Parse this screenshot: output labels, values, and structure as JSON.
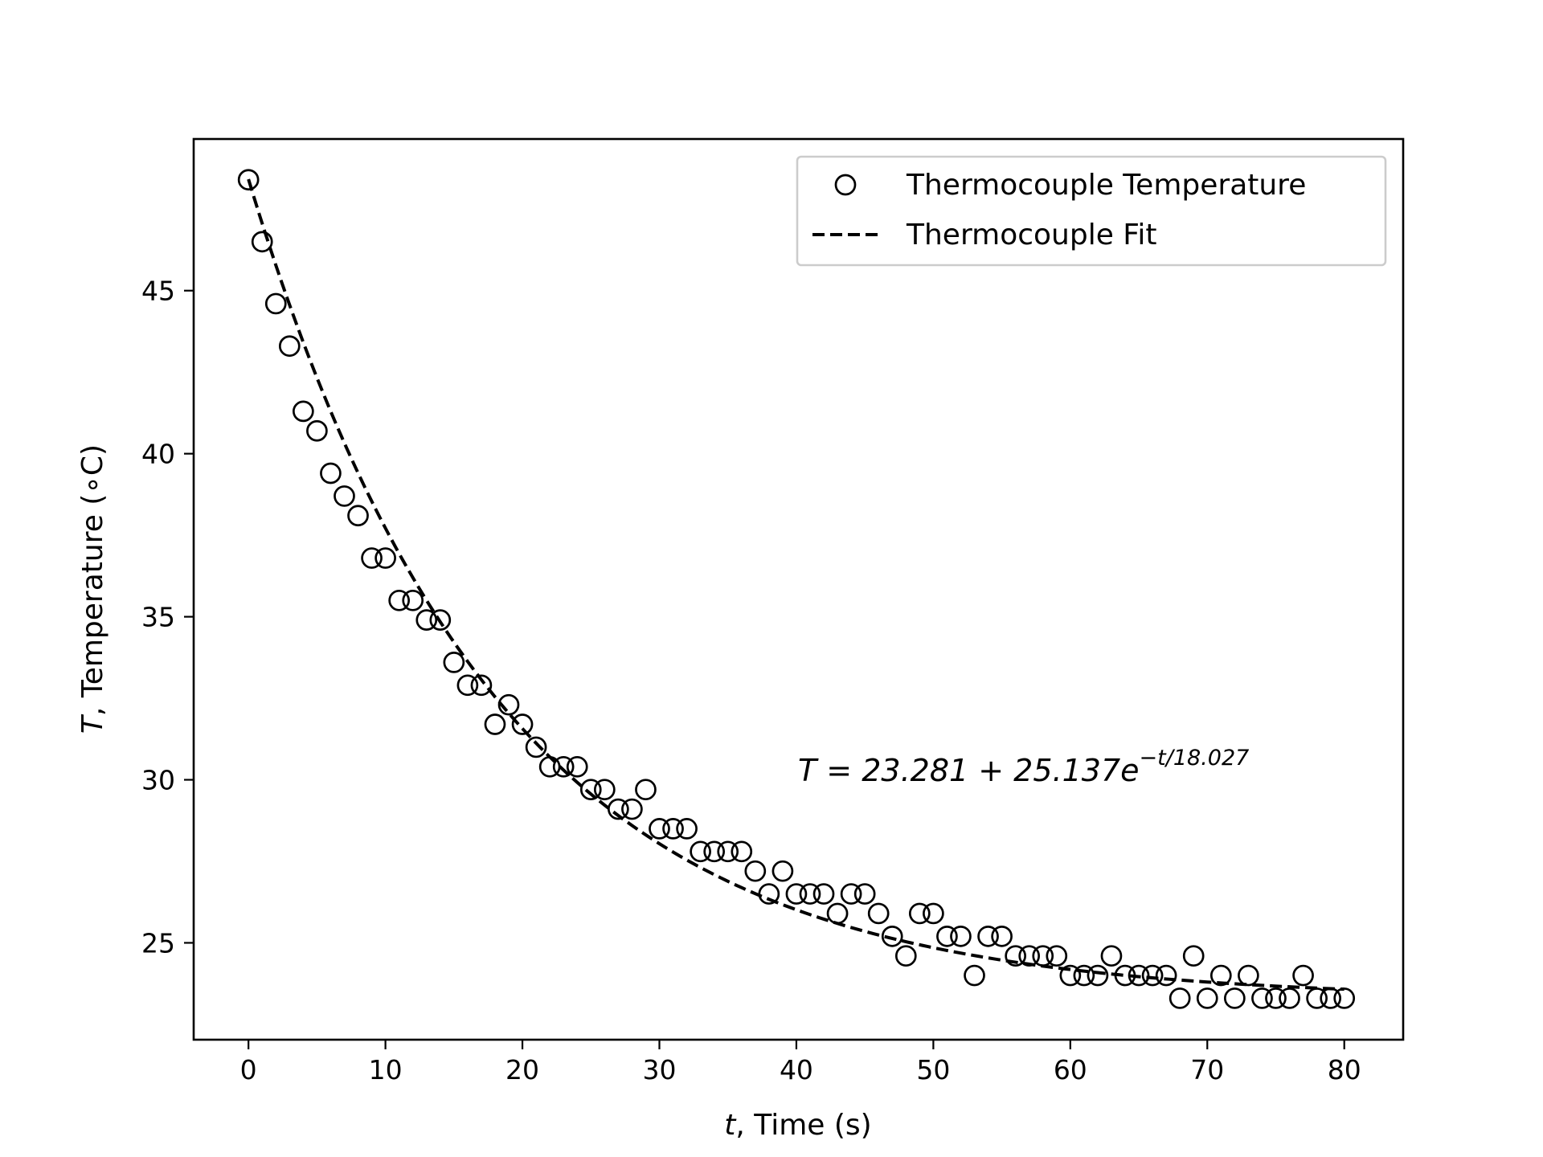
{
  "chart_data": {
    "type": "scatter",
    "xlabel_var": "t",
    "xlabel_rest": ", Time (s)",
    "ylabel_var": "T",
    "ylabel_rest": ", Temperature (∘C)",
    "xlim": [
      -4,
      84.3
    ],
    "ylim": [
      22.03,
      49.65
    ],
    "xticks": [
      "0",
      "10",
      "20",
      "30",
      "40",
      "50",
      "60",
      "70",
      "80"
    ],
    "yticks": [
      "25",
      "30",
      "35",
      "40",
      "45"
    ],
    "grid": false,
    "legend_position": "upper right",
    "colors": {
      "markers": "#000000",
      "fit_line": "#000000",
      "axes": "#000000",
      "legend_border": "#cccccc"
    },
    "series": [
      {
        "name": "Thermocouple Temperature",
        "style": "hollow-circle-markers",
        "x": [
          0,
          1,
          2,
          3,
          4,
          5,
          6,
          7,
          8,
          9,
          10,
          11,
          12,
          13,
          14,
          15,
          16,
          17,
          18,
          19,
          20,
          21,
          22,
          23,
          24,
          25,
          26,
          27,
          28,
          29,
          30,
          31,
          32,
          33,
          34,
          35,
          36,
          37,
          38,
          39,
          40,
          41,
          42,
          43,
          44,
          45,
          46,
          47,
          48,
          49,
          50,
          51,
          52,
          53,
          54,
          55,
          56,
          57,
          58,
          59,
          60,
          61,
          62,
          63,
          64,
          65,
          66,
          67,
          68,
          69,
          70,
          71,
          72,
          73,
          74,
          75,
          76,
          77,
          78,
          79,
          80
        ],
        "y": [
          48.4,
          46.5,
          44.6,
          43.3,
          41.3,
          40.7,
          39.4,
          38.7,
          38.1,
          36.8,
          36.8,
          35.5,
          35.5,
          34.9,
          34.9,
          33.6,
          32.9,
          32.9,
          31.7,
          32.3,
          31.7,
          31.0,
          30.4,
          30.4,
          30.4,
          29.7,
          29.7,
          29.1,
          29.1,
          29.7,
          28.5,
          28.5,
          28.5,
          27.8,
          27.8,
          27.8,
          27.8,
          27.2,
          26.5,
          27.2,
          26.5,
          26.5,
          26.5,
          25.9,
          26.5,
          26.5,
          25.9,
          25.2,
          24.6,
          25.9,
          25.9,
          25.2,
          25.2,
          24.0,
          25.2,
          25.2,
          24.6,
          24.6,
          24.6,
          24.6,
          24.0,
          24.0,
          24.0,
          24.6,
          24.0,
          24.0,
          24.0,
          24.0,
          23.3,
          24.6,
          23.3,
          24.0,
          23.3,
          24.0,
          23.3,
          23.3,
          23.3,
          24.0,
          23.3,
          23.3,
          23.3
        ]
      },
      {
        "name": "Thermocouple Fit",
        "style": "dashed-line",
        "model": {
          "T_inf": 23.281,
          "A": 25.137,
          "tau": 18.027
        },
        "x_range": [
          0,
          80
        ]
      }
    ],
    "annotation": {
      "prefix": "T = 23.281 + 25.137e",
      "exponent": "−t/18.027"
    }
  }
}
